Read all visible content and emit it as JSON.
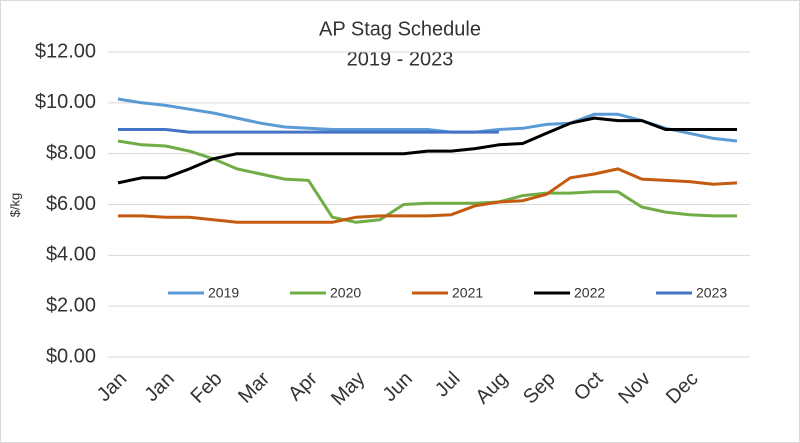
{
  "chart_data": {
    "type": "line",
    "title": "AP Stag Schedule",
    "subtitle": "2019 - 2023",
    "y_label": "$/kg",
    "categories": [
      "Jan",
      null,
      "Jan",
      null,
      "Feb",
      null,
      "Mar",
      null,
      "Apr",
      null,
      "May",
      null,
      "Jun",
      null,
      "Jul",
      null,
      "Aug",
      null,
      "Sep",
      null,
      "Oct",
      null,
      "Nov",
      null,
      "Dec",
      null,
      null
    ],
    "series": [
      {
        "name": "2019",
        "color": "#5b9bd5",
        "values": [
          10.15,
          10.0,
          9.9,
          9.75,
          9.6,
          9.4,
          9.2,
          9.05,
          9.0,
          8.95,
          8.95,
          8.95,
          8.95,
          8.95,
          8.85,
          8.85,
          8.95,
          9.0,
          9.15,
          9.2,
          9.55,
          9.55,
          9.3,
          9.0,
          8.8,
          8.6,
          8.5
        ]
      },
      {
        "name": "2020",
        "color": "#70ad47",
        "values": [
          8.5,
          8.35,
          8.3,
          8.1,
          7.8,
          7.4,
          7.2,
          7.0,
          6.95,
          5.5,
          5.3,
          5.4,
          6.0,
          6.05,
          6.05,
          6.05,
          6.1,
          6.35,
          6.45,
          6.45,
          6.5,
          6.5,
          5.9,
          5.7,
          5.6,
          5.55,
          5.55
        ]
      },
      {
        "name": "2021",
        "color": "#c55a11",
        "values": [
          5.55,
          5.55,
          5.5,
          5.5,
          5.4,
          5.3,
          5.3,
          5.3,
          5.3,
          5.3,
          5.5,
          5.55,
          5.55,
          5.55,
          5.6,
          5.95,
          6.1,
          6.15,
          6.4,
          7.05,
          7.2,
          7.4,
          7.0,
          6.95,
          6.9,
          6.8,
          6.85
        ]
      },
      {
        "name": "2022",
        "color": "#000000",
        "values": [
          6.85,
          7.05,
          7.05,
          7.4,
          7.8,
          8.0,
          8.0,
          8.0,
          8.0,
          8.0,
          8.0,
          8.0,
          8.0,
          8.1,
          8.1,
          8.2,
          8.35,
          8.4,
          8.8,
          9.2,
          9.4,
          9.3,
          9.3,
          8.95,
          8.95,
          8.95,
          8.95
        ]
      },
      {
        "name": "2023",
        "color": "#4472c4",
        "values": [
          8.95,
          8.95,
          8.95,
          8.85,
          8.85,
          8.85,
          8.85,
          8.85,
          8.85,
          8.85,
          8.85,
          8.85,
          8.85,
          8.85,
          8.85,
          8.85,
          8.85,
          null,
          null,
          null,
          null,
          null,
          null,
          null,
          null,
          null,
          null
        ]
      }
    ],
    "ylim": [
      0,
      12
    ],
    "yticks": [
      {
        "value": 0,
        "label": "$0.00"
      },
      {
        "value": 2,
        "label": "$2.00"
      },
      {
        "value": 4,
        "label": "$4.00"
      },
      {
        "value": 6,
        "label": "$6.00"
      },
      {
        "value": 8,
        "label": "$8.00"
      },
      {
        "value": 10,
        "label": "$10.00"
      },
      {
        "value": 12,
        "label": "$12.00"
      }
    ],
    "grid": true
  }
}
